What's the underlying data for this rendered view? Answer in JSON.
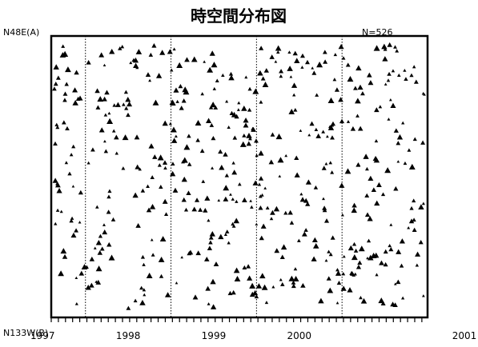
{
  "chart_data": {
    "type": "scatter",
    "title": "時空間分布図",
    "top_left_label": "N48E(A)",
    "bottom_left_label": "N133W(B)",
    "count_label": "N=526",
    "x_tick_labels": [
      "1997",
      "1998",
      "1999",
      "2000",
      "2001"
    ],
    "xlim": [
      1996.6,
      2001.0
    ],
    "ylim": [
      0,
      1
    ],
    "year_dividers": [
      1997,
      1998,
      1999,
      2000
    ],
    "marker": "triangle",
    "total_events": 526,
    "grid": false,
    "legend": "none",
    "colors": {
      "ink": "#000000",
      "background": "#ffffff"
    }
  }
}
